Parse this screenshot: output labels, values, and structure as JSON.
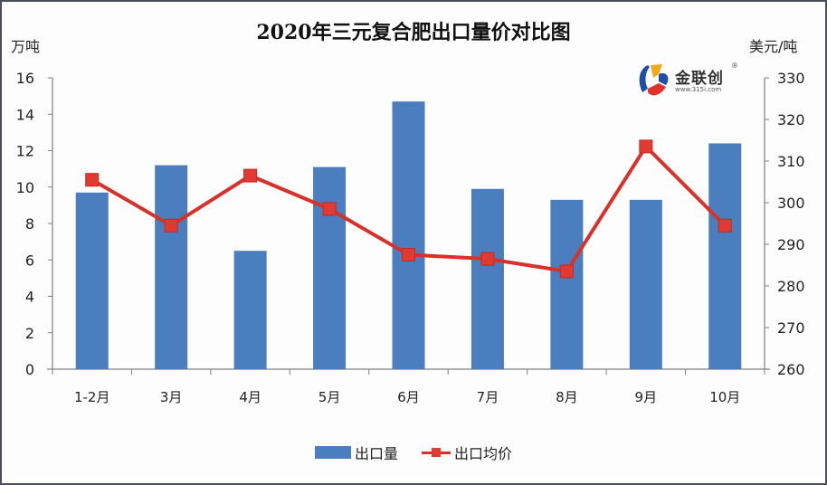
{
  "title": "2020年三元复合肥出口量价对比图",
  "left_unit": "万吨",
  "right_unit": "美元/吨",
  "logo": {
    "name": "金联创",
    "subtext": "www.315i.com",
    "registered": "®"
  },
  "colors": {
    "bar": "#4a7ebf",
    "line": "#d9302a",
    "axis": "#7f7f7f"
  },
  "legend": [
    {
      "label": "出口量",
      "type": "bar"
    },
    {
      "label": "出口均价",
      "type": "line"
    }
  ],
  "chart_data": {
    "type": "bar",
    "title": "2020年三元复合肥出口量价对比图",
    "xlabel": "",
    "ylabel": "万吨",
    "y2label": "美元/吨",
    "categories": [
      "1-2月",
      "3月",
      "4月",
      "5月",
      "6月",
      "7月",
      "8月",
      "9月",
      "10月"
    ],
    "series": [
      {
        "name": "出口量",
        "type": "bar",
        "axis": "left",
        "values": [
          9.7,
          11.2,
          6.5,
          11.1,
          14.7,
          9.9,
          9.3,
          9.3,
          12.4
        ]
      },
      {
        "name": "出口均价",
        "type": "line",
        "axis": "right",
        "marker": "square",
        "values": [
          305.5,
          294.5,
          306.5,
          298.5,
          287.5,
          286.5,
          283.5,
          313.5,
          294.5
        ]
      }
    ],
    "ylim": [
      0,
      16
    ],
    "y_ticks": [
      0,
      2,
      4,
      6,
      8,
      10,
      12,
      14,
      16
    ],
    "y2lim": [
      260,
      330
    ],
    "y2_ticks": [
      260,
      270,
      280,
      290,
      300,
      310,
      320,
      330
    ],
    "grid": false,
    "legend_position": "bottom"
  }
}
